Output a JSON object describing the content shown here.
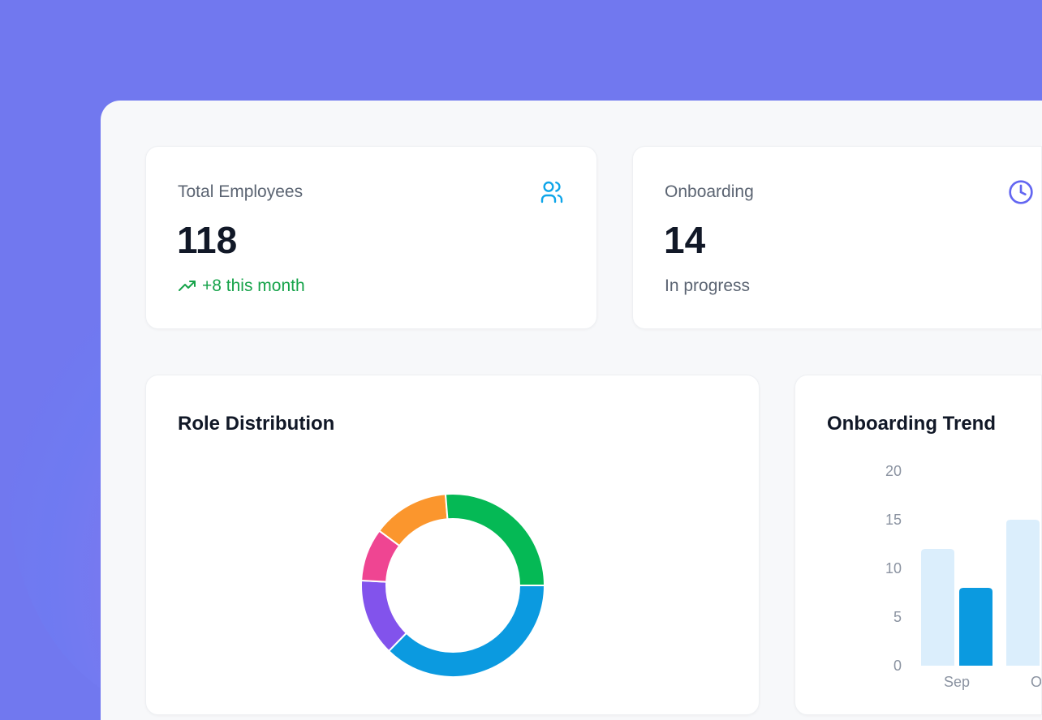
{
  "stats": [
    {
      "label": "Total Employees",
      "value": "118",
      "sub": "+8 this month",
      "icon": "users-icon",
      "icon_color": "#0ea5e9",
      "sub_color": "#16a34a"
    },
    {
      "label": "Onboarding",
      "value": "14",
      "sub": "In progress",
      "icon": "clock-icon",
      "icon_color": "#6366f1"
    }
  ],
  "charts": {
    "role_title": "Role Distribution",
    "trend_title": "Onboarding Trend"
  },
  "chart_data": [
    {
      "type": "pie",
      "title": "Role Distribution",
      "donut": true,
      "values": [
        44,
        16,
        11,
        16,
        31
      ],
      "colors": [
        "#0b9ae0",
        "#8253ec",
        "#ef4592",
        "#fb962d",
        "#05b955"
      ]
    },
    {
      "type": "bar",
      "title": "Onboarding Trend",
      "categories": [
        "Sep",
        "Oct"
      ],
      "series": [
        {
          "values": [
            12,
            15
          ],
          "color": "#dbeefc"
        },
        {
          "values": [
            8,
            null
          ],
          "color": "#0b9ae0"
        }
      ],
      "ylim": [
        0,
        20
      ],
      "yticks": [
        0,
        5,
        10,
        15,
        20
      ],
      "grid": false
    }
  ]
}
